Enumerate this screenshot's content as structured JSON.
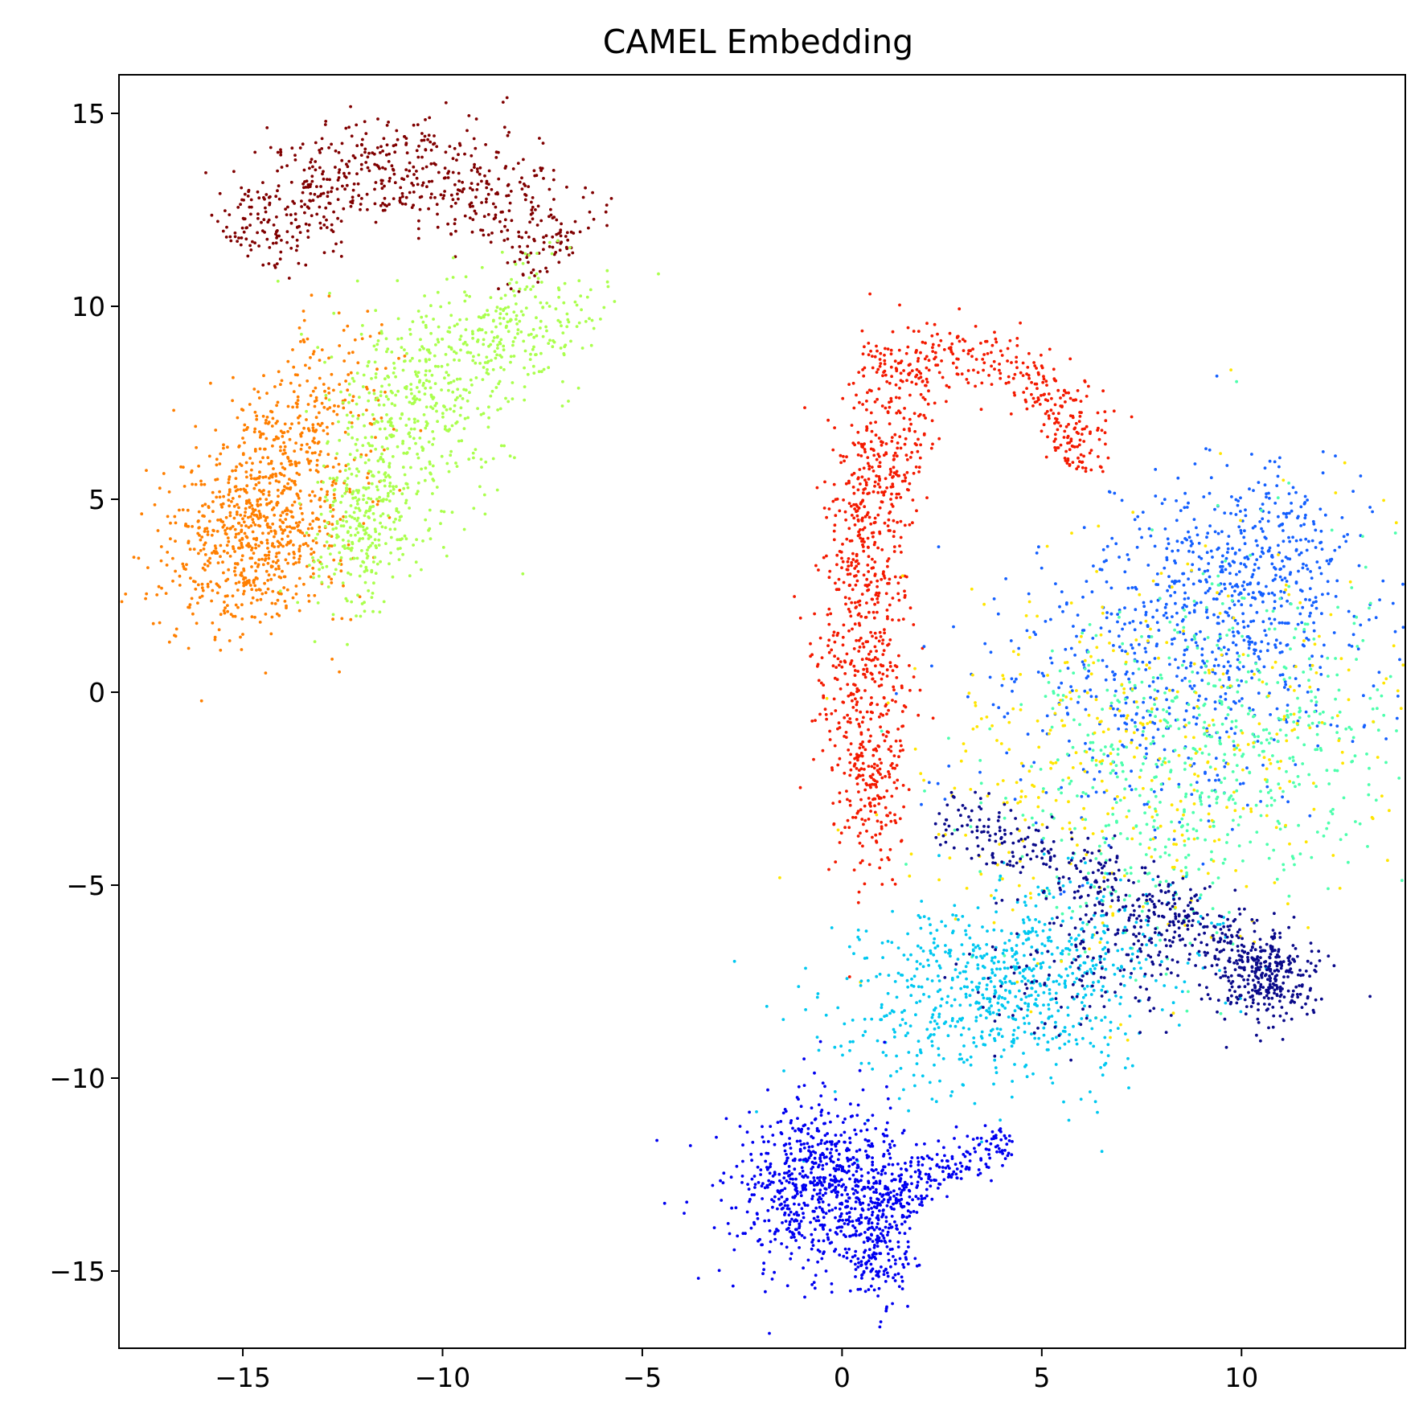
{
  "chart_data": {
    "type": "scatter",
    "title": "CAMEL Embedding",
    "xlabel": "",
    "ylabel": "",
    "xlim": [
      -18.1,
      14.1
    ],
    "ylim": [
      -17.0,
      16.0
    ],
    "x_ticks": [
      -15,
      -10,
      -5,
      0,
      5,
      10
    ],
    "y_ticks": [
      -15,
      -10,
      -5,
      0,
      5,
      10,
      15
    ],
    "x_tick_labels": [
      "−15",
      "−10",
      "−5",
      "0",
      "5",
      "10"
    ],
    "y_tick_labels": [
      "−15",
      "−10",
      "−5",
      "0",
      "5",
      "10",
      "15"
    ],
    "grid": false,
    "legend": "none",
    "colormap": "jet",
    "clusters": [
      {
        "color": "#800000",
        "n": 650,
        "shape": "arc",
        "cx": -11.0,
        "cy": 7.0,
        "rx": 5.4,
        "ry": 6.6,
        "a0": 40,
        "a1": 138,
        "thick": 0.75
      },
      {
        "color": "#ff7f00",
        "n": 800,
        "shape": "blob",
        "cx": -14.6,
        "cy": 4.3,
        "sx": 1.1,
        "sy": 1.5,
        "rot": -25
      },
      {
        "color": "#ff7f00",
        "n": 180,
        "shape": "blob",
        "cx": -13.4,
        "cy": 7.4,
        "sx": 0.9,
        "sy": 1.4,
        "rot": -30
      },
      {
        "color": "#aaff4d",
        "n": 300,
        "shape": "blob",
        "cx": -12.0,
        "cy": 4.4,
        "sx": 0.6,
        "sy": 1.2,
        "rot": -10
      },
      {
        "color": "#aaff4d",
        "n": 330,
        "shape": "blob",
        "cx": -10.8,
        "cy": 7.2,
        "sx": 1.1,
        "sy": 1.4,
        "rot": 20
      },
      {
        "color": "#aaff4d",
        "n": 300,
        "shape": "blob",
        "cx": -8.7,
        "cy": 9.3,
        "sx": 1.3,
        "sy": 0.8,
        "rot": 25
      },
      {
        "color": "#f31a00",
        "n": 500,
        "shape": "blob",
        "cx": 0.5,
        "cy": 1.5,
        "sx": 0.55,
        "sy": 2.6,
        "rot": 0
      },
      {
        "color": "#f31a00",
        "n": 260,
        "shape": "blob",
        "cx": 1.0,
        "cy": 5.8,
        "sx": 0.5,
        "sy": 1.5,
        "rot": -10
      },
      {
        "color": "#f31a00",
        "n": 350,
        "shape": "arc",
        "cx": 2.6,
        "cy": 6.2,
        "rx": 3.4,
        "ry": 2.6,
        "a0": -10,
        "a1": 125,
        "thick": 0.45
      },
      {
        "color": "#f31a00",
        "n": 120,
        "shape": "blob",
        "cx": 0.9,
        "cy": -2.6,
        "sx": 0.4,
        "sy": 1.2,
        "rot": 0
      },
      {
        "color": "#1460ff",
        "n": 650,
        "shape": "blob",
        "cx": 8.6,
        "cy": 0.9,
        "sx": 2.6,
        "sy": 1.9,
        "rot": 30
      },
      {
        "color": "#1460ff",
        "n": 330,
        "shape": "blob",
        "cx": 10.2,
        "cy": 3.4,
        "sx": 1.3,
        "sy": 1.3,
        "rot": 0
      },
      {
        "color": "#4dffad",
        "n": 650,
        "shape": "blob",
        "cx": 9.2,
        "cy": -1.6,
        "sx": 2.6,
        "sy": 2.1,
        "rot": 40
      },
      {
        "color": "#ffe500",
        "n": 420,
        "shape": "blob",
        "cx": 7.8,
        "cy": -1.8,
        "sx": 3.2,
        "sy": 2.6,
        "rot": 35
      },
      {
        "color": "#00c8f0",
        "n": 800,
        "shape": "blob",
        "cx": 4.2,
        "cy": -7.6,
        "sx": 2.1,
        "sy": 1.3,
        "rot": 15
      },
      {
        "color": "#0a0a8a",
        "n": 420,
        "shape": "band",
        "x0": 2.5,
        "y0": -3.0,
        "x1": 11.2,
        "y1": -7.2,
        "thick": 0.45
      },
      {
        "color": "#0a0a8a",
        "n": 280,
        "shape": "blob",
        "cx": 10.7,
        "cy": -7.4,
        "sx": 0.7,
        "sy": 0.55,
        "rot": 0
      },
      {
        "color": "#0a0a8a",
        "n": 180,
        "shape": "blob",
        "cx": 6.5,
        "cy": -7.0,
        "sx": 1.8,
        "sy": 1.0,
        "rot": 20
      },
      {
        "color": "#0000f0",
        "n": 750,
        "shape": "blob",
        "cx": -0.5,
        "cy": -12.8,
        "sx": 1.1,
        "sy": 1.1,
        "rot": 0
      },
      {
        "color": "#0000f0",
        "n": 220,
        "shape": "blob",
        "cx": 0.9,
        "cy": -14.0,
        "sx": 0.4,
        "sy": 0.9,
        "rot": 0
      },
      {
        "color": "#0000f0",
        "n": 180,
        "shape": "band",
        "x0": 1.2,
        "y0": -13.0,
        "x1": 4.2,
        "y1": -11.5,
        "thick": 0.3
      }
    ]
  }
}
